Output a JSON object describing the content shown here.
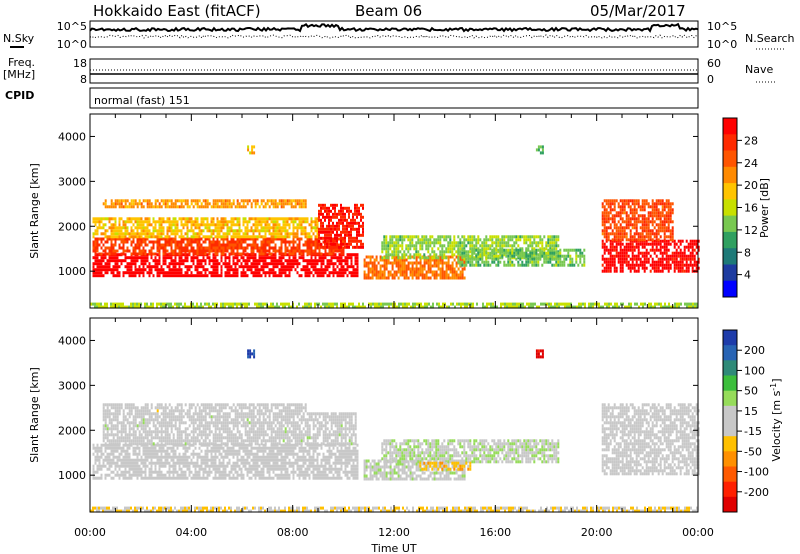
{
  "header": {
    "station": "Hokkaido East (fitACF)",
    "beam": "Beam 06",
    "date": "05/Mar/2017"
  },
  "strip_panels": {
    "nsky": {
      "label": "N.Sky",
      "ticks_left": [
        "10^5",
        "10^0"
      ],
      "ticks_right": [
        "10^5",
        "10^0"
      ],
      "right_label": "N.Search"
    },
    "freq": {
      "label_line1": "Freq.",
      "label_line2": "[MHz]",
      "ticks_left": [
        "18",
        "8"
      ],
      "ticks_right": [
        "60",
        "0"
      ],
      "right_label": "Nave"
    },
    "cpid": {
      "label": "CPID",
      "value": "normal (fast) 151"
    }
  },
  "colorbars": {
    "power": {
      "title": "Power [dB]",
      "ticks": [
        "28",
        "24",
        "20",
        "16",
        "12",
        "8",
        "4"
      ],
      "colors": [
        "#ff0000",
        "#ff2a00",
        "#ff5500",
        "#ff8a00",
        "#ffc400",
        "#c8e000",
        "#78c850",
        "#2fa060",
        "#1e7a78",
        "#1e3ca0",
        "#0000ff"
      ]
    },
    "velocity": {
      "title_main": "Velocity [m s",
      "title_sup": "-1",
      "title_end": "]",
      "ticks": [
        "200",
        "100",
        "50",
        "15",
        "-15",
        "-50",
        "-100",
        "-200"
      ],
      "colors": [
        "#1e3caa",
        "#2864b4",
        "#2f8a78",
        "#3cbe3c",
        "#96dc5a",
        "#c8c8c8",
        "#c8c8c8",
        "#ffc000",
        "#ff9000",
        "#ff5a00",
        "#ff2000",
        "#e00000"
      ]
    }
  },
  "chart_data": [
    {
      "type": "heatmap",
      "ylabel": "Slant Range [km]",
      "x_ticks": [
        "00:00",
        "04:00",
        "08:00",
        "12:00",
        "16:00",
        "20:00",
        "00:00"
      ],
      "y_ticks": [
        "1000",
        "2000",
        "3000",
        "4000"
      ],
      "xlim": [
        0,
        24
      ],
      "ylim": [
        180,
        4500
      ],
      "colorbar": "Power [dB]",
      "zlim": [
        0,
        30
      ],
      "patches": [
        {
          "x": [
            0.1,
            10.6
          ],
          "y": [
            900,
            1400
          ],
          "value": 30
        },
        {
          "x": [
            0.1,
            10.0
          ],
          "y": [
            1400,
            1750
          ],
          "value": 25
        },
        {
          "x": [
            0.1,
            9.0
          ],
          "y": [
            1750,
            2200
          ],
          "value": 18
        },
        {
          "x": [
            0.5,
            8.5
          ],
          "y": [
            2400,
            2600
          ],
          "value": 20
        },
        {
          "x": [
            9.0,
            10.8
          ],
          "y": [
            1500,
            2500
          ],
          "value": 27
        },
        {
          "x": [
            10.8,
            14.8
          ],
          "y": [
            850,
            1350
          ],
          "value": 22
        },
        {
          "x": [
            11.5,
            18.5
          ],
          "y": [
            1300,
            1800
          ],
          "value": 13
        },
        {
          "x": [
            14.5,
            19.5
          ],
          "y": [
            1100,
            1500
          ],
          "value": 12
        },
        {
          "x": [
            20.2,
            24.0
          ],
          "y": [
            1000,
            1700
          ],
          "value": 29
        },
        {
          "x": [
            20.2,
            23.0
          ],
          "y": [
            1700,
            2600
          ],
          "value": 24
        },
        {
          "x": [
            6.2,
            6.5
          ],
          "y": [
            3650,
            3800
          ],
          "value": 18
        },
        {
          "x": [
            17.6,
            17.9
          ],
          "y": [
            3600,
            3800
          ],
          "value": 11
        },
        {
          "x": [
            0.0,
            24.0
          ],
          "y": [
            200,
            300
          ],
          "value": 14
        }
      ]
    },
    {
      "type": "heatmap",
      "ylabel": "Slant Range [km]",
      "xlabel": "Time UT",
      "x_ticks": [
        "00:00",
        "04:00",
        "08:00",
        "12:00",
        "16:00",
        "20:00",
        "00:00"
      ],
      "y_ticks": [
        "1000",
        "2000",
        "3000",
        "4000"
      ],
      "xlim": [
        0,
        24
      ],
      "ylim": [
        180,
        4500
      ],
      "colorbar": "Velocity [m s-1]",
      "zlim": [
        -250,
        250
      ],
      "patches": [
        {
          "x": [
            0.1,
            10.6
          ],
          "y": [
            900,
            1700
          ],
          "value": 0
        },
        {
          "x": [
            0.5,
            10.5
          ],
          "y": [
            1700,
            2400
          ],
          "value": 5
        },
        {
          "x": [
            0.5,
            8.5
          ],
          "y": [
            2400,
            2600
          ],
          "value": -5
        },
        {
          "x": [
            10.8,
            14.8
          ],
          "y": [
            900,
            1350
          ],
          "value": 20
        },
        {
          "x": [
            11.5,
            18.5
          ],
          "y": [
            1300,
            1800
          ],
          "value": 30
        },
        {
          "x": [
            13.0,
            15.0
          ],
          "y": [
            1100,
            1300
          ],
          "value": -60
        },
        {
          "x": [
            20.2,
            24.0
          ],
          "y": [
            1000,
            2600
          ],
          "value": 0
        },
        {
          "x": [
            6.2,
            6.5
          ],
          "y": [
            3650,
            3800
          ],
          "value": 220
        },
        {
          "x": [
            17.6,
            17.9
          ],
          "y": [
            3600,
            3800
          ],
          "value": -230
        },
        {
          "x": [
            0.0,
            24.0
          ],
          "y": [
            200,
            300
          ],
          "value": -40
        }
      ]
    }
  ]
}
